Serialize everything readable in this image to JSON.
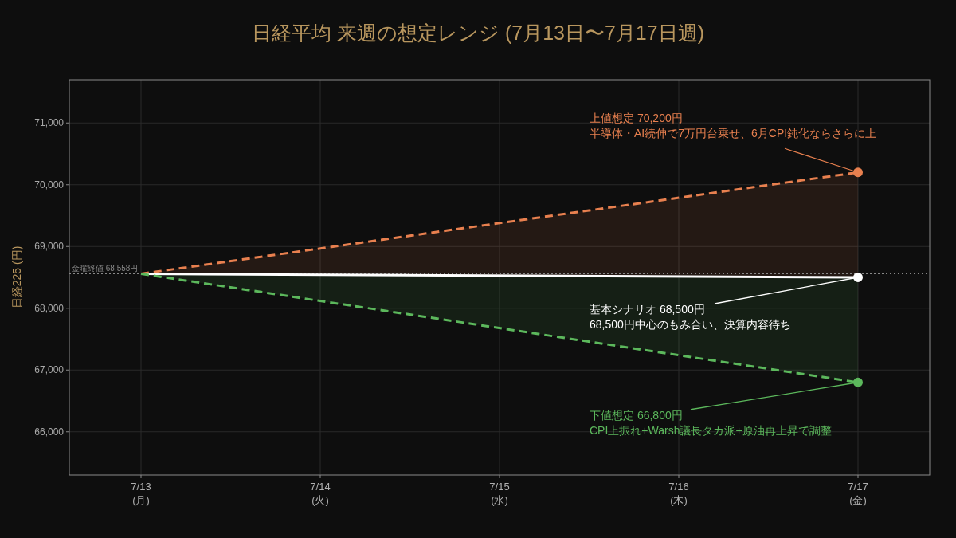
{
  "chart_data": {
    "type": "line",
    "title": "日経平均 来週の想定レンジ (7月13日〜7月17日週)",
    "ylabel": "日経225 (円)",
    "categories": [
      "7/13\n(月)",
      "7/14\n(火)",
      "7/15\n(水)",
      "7/16\n(木)",
      "7/17\n(金)"
    ],
    "series": [
      {
        "color": "#e8804f",
        "line_style": "dashed",
        "marker": "circle",
        "x": [
          "7/13\n(月)",
          "7/17\n(金)"
        ],
        "values": [
          68558,
          70200
        ],
        "lower": [
          68558,
          68500
        ],
        "upper": [
          68558,
          70200
        ]
      },
      {
        "color": "#ffffff",
        "line_style": "solid",
        "marker": "circle",
        "x": [
          "7/13\n(月)",
          "7/17\n(金)"
        ],
        "values": [
          68558,
          68500
        ]
      },
      {
        "color": "#5cb85c",
        "line_style": "dashed",
        "marker": "circle",
        "x": [
          "7/13\n(月)",
          "7/17\n(金)"
        ],
        "values": [
          68558,
          66800
        ],
        "lower": [
          68558,
          66800
        ],
        "upper": [
          68558,
          68500
        ]
      }
    ],
    "ylim": [
      65300,
      71700
    ],
    "yticks": [
      {
        "value": 66000,
        "label": "66,000"
      },
      {
        "value": 67000,
        "label": "67,000"
      },
      {
        "value": 68000,
        "label": "68,000"
      },
      {
        "value": 69000,
        "label": "69,000"
      },
      {
        "value": 70000,
        "label": "70,000"
      },
      {
        "value": 71000,
        "label": "71,000"
      }
    ],
    "grid": true,
    "ref_lines": [
      {
        "axis": "y",
        "value": 68558,
        "label": "金曜終値 68,558円",
        "color": "#888888",
        "line_style": "dotted"
      }
    ],
    "annotations": [
      "上値想定 70,200円",
      {
        "text": "半導体・AI続伸で7万円台乗せ、6月CPI鈍化ならさらに上",
        "x": "7/17\n(金)",
        "y": 70200
      },
      {
        "text": "基本シナリオ 68,500円",
        "x": "7/17\n(金)",
        "y": 68500
      },
      "68,500円中心のもみ合い、決算内容待ち",
      {
        "text": "下値想定 66,800円",
        "x": "7/17\n(金)",
        "y": 66800
      },
      "CPI上振れ+Warsh議長タカ派+原油再上昇で調整"
    ]
  }
}
